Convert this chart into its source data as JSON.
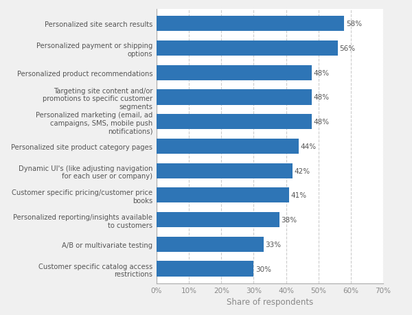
{
  "categories": [
    "Customer specific catalog access\nrestrictions",
    "A/B or multivariate testing",
    "Personalized reporting/insights available\nto customers",
    "Customer specific pricing/customer price\nbooks",
    "Dynamic UI's (like adjusting navigation\nfor each user or company)",
    "Personalized site product category pages",
    "Personalized marketing (email, ad\ncampaigns, SMS, mobile push\nnotifications)",
    "Targeting site content and/or\npromotions to specific customer\nsegments",
    "Personalized product recommendations",
    "Personalized payment or shipping\noptions",
    "Personalized site search results"
  ],
  "values": [
    30,
    33,
    38,
    41,
    42,
    44,
    48,
    48,
    48,
    56,
    58
  ],
  "bar_color": "#2e75b6",
  "xlabel": "Share of respondents",
  "xlim": [
    0,
    70
  ],
  "xticks": [
    0,
    10,
    20,
    30,
    40,
    50,
    60,
    70
  ],
  "fig_background": "#f0f0f0",
  "plot_background": "#ffffff",
  "label_fontsize": 7.2,
  "value_fontsize": 7.5,
  "xlabel_fontsize": 8.5,
  "tick_fontsize": 7.5,
  "bar_height": 0.62
}
